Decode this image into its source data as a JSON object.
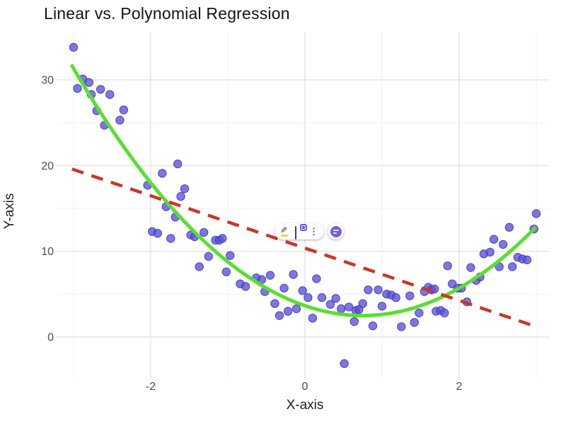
{
  "chart": {
    "title": "Linear vs. Polynomial Regression",
    "xlabel": "X-axis",
    "ylabel": "Y-axis"
  },
  "chart_data": {
    "type": "scatter",
    "title": "Linear vs. Polynomial Regression",
    "xlabel": "X-axis",
    "ylabel": "Y-axis",
    "x_ticks": [
      -2,
      0,
      2
    ],
    "x_minor_ticks": [
      -3,
      -1,
      1,
      3
    ],
    "y_ticks": [
      0,
      10,
      20,
      30
    ],
    "y_minor_ticks": [
      5,
      15,
      25
    ],
    "xlim": [
      -3.2,
      3.2
    ],
    "ylim": [
      -4.9,
      35.5
    ],
    "grid": "on",
    "legend": "none",
    "point_color": "#5A50D8",
    "point_edge_color": "#3D34B0",
    "major_grid_color": "#e4e4e4",
    "minor_grid_color": "#f2f2f2",
    "points": [
      [
        -3.0,
        33.8
      ],
      [
        -2.95,
        29.0
      ],
      [
        -2.88,
        30.1
      ],
      [
        -2.8,
        29.7
      ],
      [
        -2.77,
        28.3
      ],
      [
        -2.7,
        26.4
      ],
      [
        -2.65,
        28.9
      ],
      [
        -2.6,
        24.7
      ],
      [
        -2.53,
        28.3
      ],
      [
        -2.4,
        25.3
      ],
      [
        -2.35,
        26.5
      ],
      [
        -2.04,
        17.7
      ],
      [
        -1.98,
        12.3
      ],
      [
        -1.91,
        12.1
      ],
      [
        -1.85,
        19.1
      ],
      [
        -1.8,
        15.2
      ],
      [
        -1.74,
        11.5
      ],
      [
        -1.68,
        14.0
      ],
      [
        -1.65,
        20.2
      ],
      [
        -1.61,
        16.4
      ],
      [
        -1.56,
        17.3
      ],
      [
        -1.48,
        11.9
      ],
      [
        -1.43,
        11.7
      ],
      [
        -1.37,
        8.2
      ],
      [
        -1.31,
        12.2
      ],
      [
        -1.25,
        9.4
      ],
      [
        -1.16,
        11.3
      ],
      [
        -1.11,
        11.3
      ],
      [
        -1.07,
        11.5
      ],
      [
        -1.02,
        7.6
      ],
      [
        -0.97,
        9.5
      ],
      [
        -0.84,
        6.2
      ],
      [
        -0.77,
        5.9
      ],
      [
        -0.63,
        6.9
      ],
      [
        -0.56,
        6.7
      ],
      [
        -0.52,
        5.3
      ],
      [
        -0.45,
        7.2
      ],
      [
        -0.39,
        3.9
      ],
      [
        -0.33,
        2.5
      ],
      [
        -0.27,
        5.7
      ],
      [
        -0.22,
        3.0
      ],
      [
        -0.15,
        7.3
      ],
      [
        -0.11,
        3.3
      ],
      [
        -0.03,
        5.4
      ],
      [
        0.04,
        4.6
      ],
      [
        0.1,
        2.2
      ],
      [
        0.15,
        6.8
      ],
      [
        0.22,
        4.6
      ],
      [
        0.33,
        3.8
      ],
      [
        0.4,
        4.5
      ],
      [
        0.47,
        3.3
      ],
      [
        0.51,
        -3.1
      ],
      [
        0.57,
        3.5
      ],
      [
        0.64,
        1.8
      ],
      [
        0.66,
        3.1
      ],
      [
        0.7,
        3.2
      ],
      [
        0.75,
        3.9
      ],
      [
        0.82,
        5.5
      ],
      [
        0.88,
        1.3
      ],
      [
        0.95,
        5.5
      ],
      [
        1.0,
        3.6
      ],
      [
        1.06,
        5.0
      ],
      [
        1.12,
        4.9
      ],
      [
        1.18,
        4.6
      ],
      [
        1.25,
        1.2
      ],
      [
        1.36,
        4.8
      ],
      [
        1.42,
        1.7
      ],
      [
        1.48,
        2.8
      ],
      [
        1.55,
        5.3
      ],
      [
        1.6,
        5.8
      ],
      [
        1.64,
        5.5
      ],
      [
        1.68,
        5.6
      ],
      [
        1.7,
        3.0
      ],
      [
        1.76,
        3.1
      ],
      [
        1.81,
        2.8
      ],
      [
        1.85,
        8.3
      ],
      [
        1.91,
        6.2
      ],
      [
        1.98,
        5.7
      ],
      [
        2.03,
        5.7
      ],
      [
        2.1,
        4.1
      ],
      [
        2.15,
        8.1
      ],
      [
        2.22,
        6.6
      ],
      [
        2.27,
        7.0
      ],
      [
        2.32,
        9.7
      ],
      [
        2.4,
        9.9
      ],
      [
        2.45,
        11.4
      ],
      [
        2.52,
        8.2
      ],
      [
        2.57,
        10.8
      ],
      [
        2.65,
        12.8
      ],
      [
        2.69,
        8.2
      ],
      [
        2.76,
        9.3
      ],
      [
        2.82,
        9.1
      ],
      [
        2.88,
        9.0
      ],
      [
        2.97,
        12.6
      ],
      [
        3.0,
        14.4
      ]
    ],
    "series": [
      {
        "name": "polynomial fit",
        "kind": "quadratic",
        "style": "solid",
        "color": "#58DF30",
        "model": "y = 2.05*(x-0.75)^2 + 2.5",
        "a": 2.05,
        "h": 0.75,
        "k": 2.5,
        "domain": [
          -3.02,
          3.0
        ]
      },
      {
        "name": "linear fit",
        "kind": "line",
        "style": "dashed",
        "color": "#CC3528",
        "model": "y = 10.4 - 3.07x",
        "endpoints": [
          [
            -3.02,
            19.6
          ],
          [
            3.0,
            1.2
          ]
        ]
      }
    ]
  },
  "overlay_toolbar": {
    "pencil_icon": {
      "glyph": "✎",
      "underline_color": "#f2d43c"
    },
    "copy_icon": {
      "badge_color": "#6d4fe0"
    },
    "kebab_icon": {
      "glyph": "⋮"
    },
    "extension_button": {
      "color": "#7a5ce0"
    }
  }
}
